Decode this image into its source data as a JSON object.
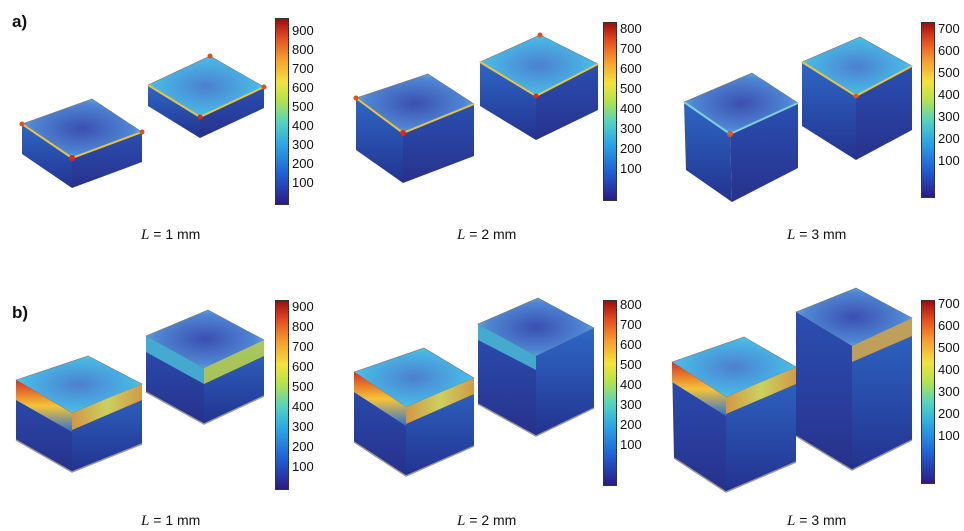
{
  "panels": [
    {
      "label": "a)",
      "captions": [
        "1 mm",
        "2 mm",
        "3 mm"
      ],
      "colorbars": [
        {
          "ticks": [
            "900",
            "800",
            "700",
            "600",
            "500",
            "400",
            "300",
            "200",
            "100"
          ]
        },
        {
          "ticks": [
            "800",
            "700",
            "600",
            "500",
            "400",
            "300",
            "200",
            "100"
          ]
        },
        {
          "ticks": [
            "700",
            "600",
            "500",
            "400",
            "300",
            "200",
            "100"
          ]
        }
      ]
    },
    {
      "label": "b)",
      "captions": [
        "1 mm",
        "2 mm",
        "3 mm"
      ],
      "colorbars": [
        {
          "ticks": [
            "900",
            "800",
            "700",
            "600",
            "500",
            "400",
            "300",
            "200",
            "100"
          ]
        },
        {
          "ticks": [
            "800",
            "700",
            "600",
            "500",
            "400",
            "300",
            "200",
            "100"
          ]
        },
        {
          "ticks": [
            "700",
            "600",
            "500",
            "400",
            "300",
            "200",
            "100"
          ]
        }
      ]
    }
  ],
  "caption_var": "L",
  "caption_eq": " = ",
  "colors": {
    "cold": "#2f3f9f",
    "mid": "#35a8de",
    "hot": "#e23a1e"
  }
}
